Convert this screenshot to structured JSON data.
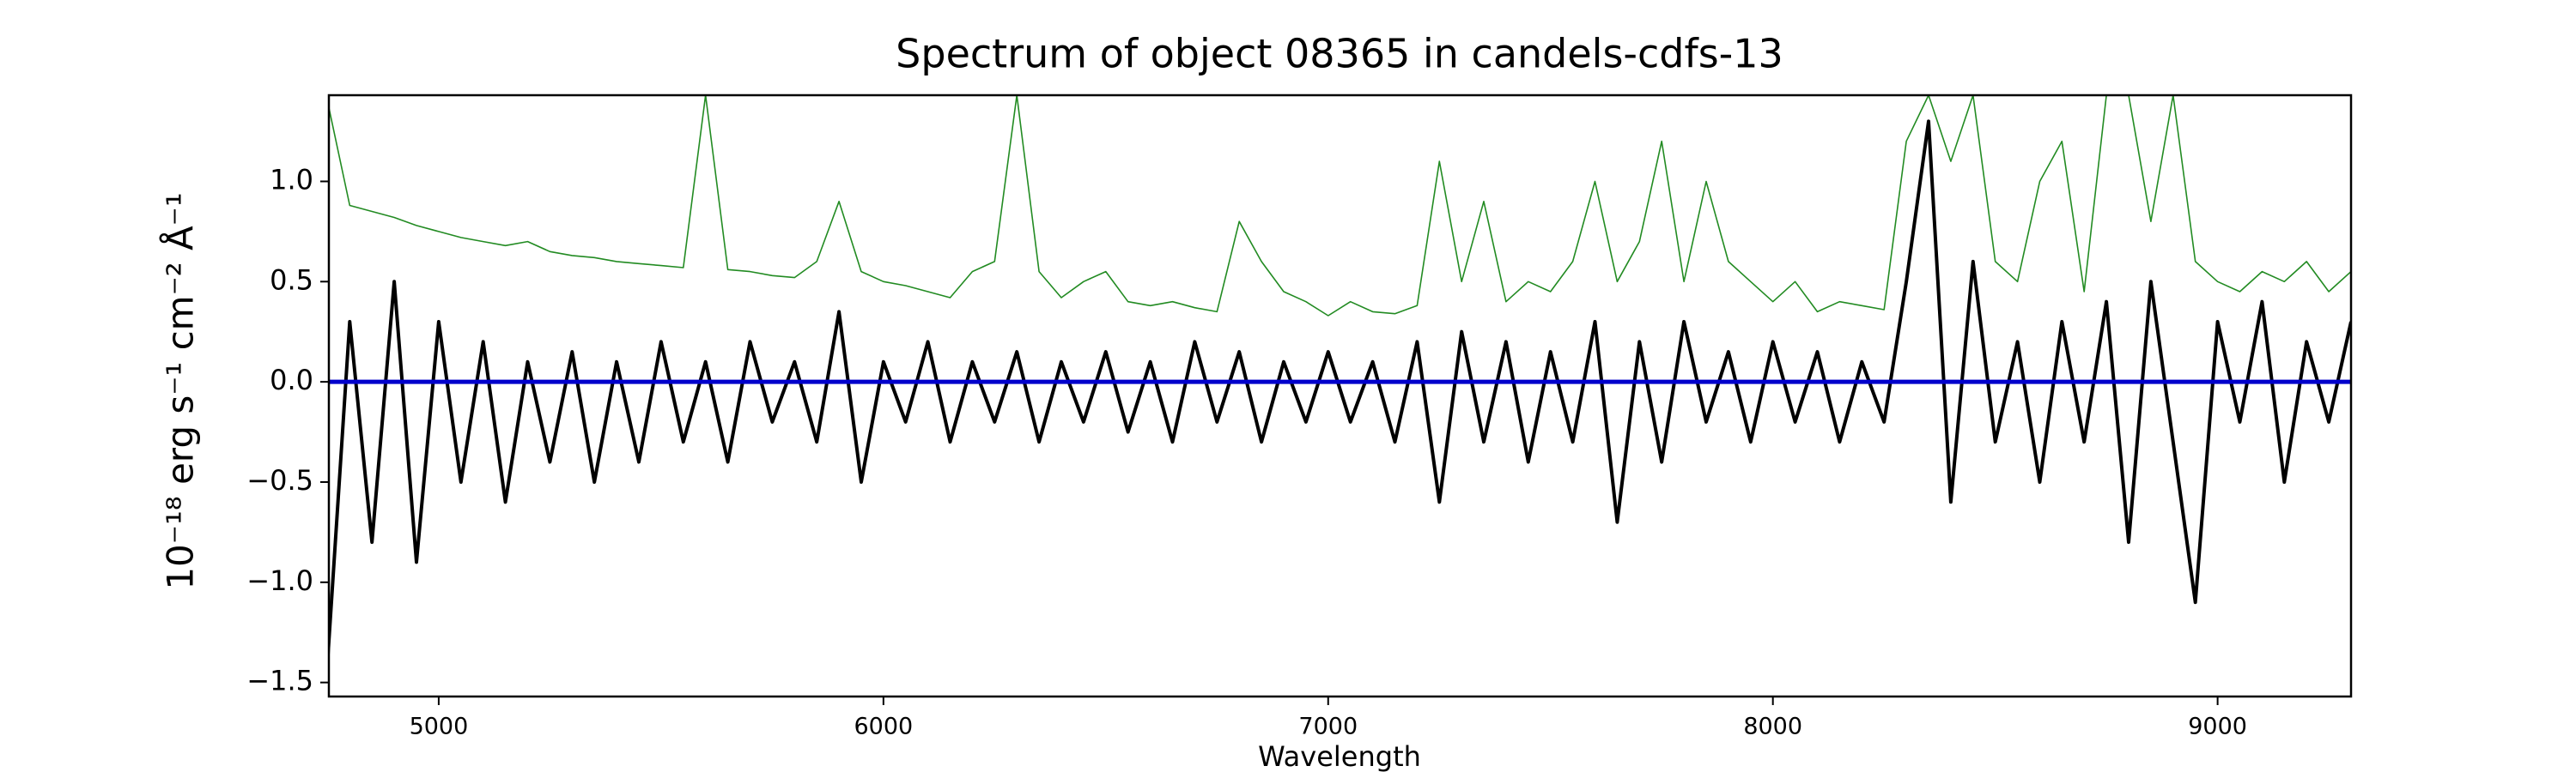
{
  "chart_data": {
    "type": "line",
    "title": "Spectrum of object 08365 in candels-cdfs-13",
    "x_label": "Wavelength",
    "y_label": "10⁻¹⁸ erg s⁻¹ cm⁻² Å⁻¹",
    "x": [
      4750,
      4800,
      4850,
      4900,
      4950,
      5000,
      5050,
      5100,
      5150,
      5200,
      5250,
      5300,
      5350,
      5400,
      5450,
      5500,
      5550,
      5600,
      5650,
      5700,
      5750,
      5800,
      5850,
      5900,
      5950,
      6000,
      6050,
      6100,
      6150,
      6200,
      6250,
      6300,
      6350,
      6400,
      6450,
      6500,
      6550,
      6600,
      6650,
      6700,
      6750,
      6800,
      6850,
      6900,
      6950,
      7000,
      7050,
      7100,
      7150,
      7200,
      7250,
      7300,
      7350,
      7400,
      7450,
      7500,
      7550,
      7600,
      7650,
      7700,
      7750,
      7800,
      7850,
      7900,
      7950,
      8000,
      8050,
      8100,
      8150,
      8200,
      8250,
      8300,
      8350,
      8400,
      8450,
      8500,
      8550,
      8600,
      8650,
      8700,
      8750,
      8800,
      8850,
      8900,
      8950,
      9000,
      9050,
      9100,
      9150,
      9200,
      9250,
      9300
    ],
    "series": [
      {
        "color": "#228b22",
        "width": 1.6,
        "values": [
          1.4,
          0.88,
          0.85,
          0.82,
          0.78,
          0.75,
          0.72,
          0.7,
          0.68,
          0.7,
          0.65,
          0.63,
          0.62,
          0.6,
          0.59,
          0.58,
          0.57,
          1.43,
          0.56,
          0.55,
          0.53,
          0.52,
          0.6,
          0.9,
          0.55,
          0.5,
          0.48,
          0.45,
          0.42,
          0.55,
          0.6,
          1.43,
          0.55,
          0.42,
          0.5,
          0.55,
          0.4,
          0.38,
          0.4,
          0.37,
          0.35,
          0.8,
          0.6,
          0.45,
          0.4,
          0.33,
          0.4,
          0.35,
          0.34,
          0.38,
          1.1,
          0.5,
          0.9,
          0.4,
          0.5,
          0.45,
          0.6,
          1.0,
          0.5,
          0.7,
          1.2,
          0.5,
          1.0,
          0.6,
          0.5,
          0.4,
          0.5,
          0.35,
          0.4,
          0.38,
          0.36,
          1.2,
          1.43,
          1.1,
          1.43,
          0.6,
          0.5,
          1.0,
          1.2,
          0.45,
          1.43,
          1.43,
          0.8,
          1.43,
          0.6,
          0.5,
          0.45,
          0.55,
          0.5,
          0.6,
          0.45,
          0.55
        ]
      },
      {
        "color": "#000000",
        "width": 4,
        "values": [
          -1.4,
          0.3,
          -0.8,
          0.5,
          -0.9,
          0.3,
          -0.5,
          0.2,
          -0.6,
          0.1,
          -0.4,
          0.15,
          -0.5,
          0.1,
          -0.4,
          0.2,
          -0.3,
          0.1,
          -0.4,
          0.2,
          -0.2,
          0.1,
          -0.3,
          0.35,
          -0.5,
          0.1,
          -0.2,
          0.2,
          -0.3,
          0.1,
          -0.2,
          0.15,
          -0.3,
          0.1,
          -0.2,
          0.15,
          -0.25,
          0.1,
          -0.3,
          0.2,
          -0.2,
          0.15,
          -0.3,
          0.1,
          -0.2,
          0.15,
          -0.2,
          0.1,
          -0.3,
          0.2,
          -0.6,
          0.25,
          -0.3,
          0.2,
          -0.4,
          0.15,
          -0.3,
          0.3,
          -0.7,
          0.2,
          -0.4,
          0.3,
          -0.2,
          0.15,
          -0.3,
          0.2,
          -0.2,
          0.15,
          -0.3,
          0.1,
          -0.2,
          0.5,
          1.3,
          -0.6,
          0.6,
          -0.3,
          0.2,
          -0.5,
          0.3,
          -0.3,
          0.4,
          -0.8,
          0.5,
          -0.3,
          -1.1,
          0.3,
          -0.2,
          0.4,
          -0.5,
          0.2,
          -0.2,
          0.3
        ]
      },
      {
        "color": "#0000cc",
        "width": 5,
        "values": [
          0,
          0,
          0,
          0,
          0,
          0,
          0,
          0,
          0,
          0,
          0,
          0,
          0,
          0,
          0,
          0,
          0,
          0,
          0,
          0,
          0,
          0,
          0,
          0,
          0,
          0,
          0,
          0,
          0,
          0,
          0,
          0,
          0,
          0,
          0,
          0,
          0,
          0,
          0,
          0,
          0,
          0,
          0,
          0,
          0,
          0,
          0,
          0,
          0,
          0,
          0,
          0,
          0,
          0,
          0,
          0,
          0,
          0,
          0,
          0,
          0,
          0,
          0,
          0,
          0,
          0,
          0,
          0,
          0,
          0,
          0,
          0,
          0,
          0,
          0,
          0,
          0,
          0,
          0,
          0,
          0,
          0,
          0,
          0,
          0,
          0,
          0,
          0,
          0,
          0,
          0,
          0
        ]
      }
    ],
    "xlim": [
      4753,
      9300
    ],
    "ylim": [
      -1.57,
      1.43
    ],
    "xticks": [
      5000,
      6000,
      7000,
      8000,
      9000
    ],
    "yticks": [
      {
        "value": -1.5,
        "label": "−1.5"
      },
      {
        "value": -1.0,
        "label": "−1.0"
      },
      {
        "value": -0.5,
        "label": "−0.5"
      },
      {
        "value": 0.0,
        "label": "0.0"
      },
      0.5,
      {
        "value": 1.0,
        "label": "1.0"
      }
    ]
  }
}
